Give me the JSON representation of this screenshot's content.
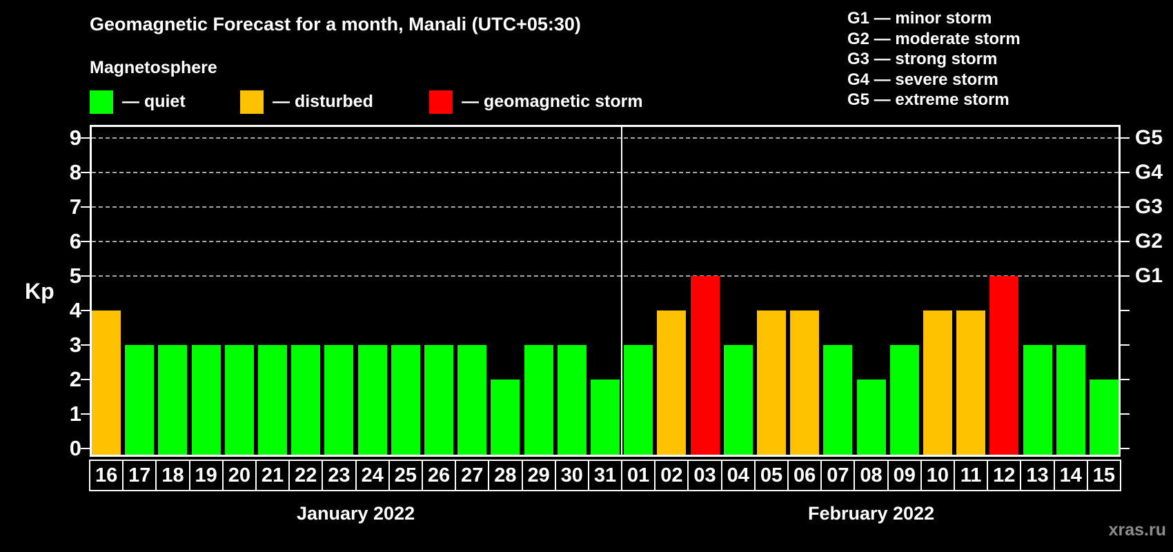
{
  "title": "Geomagnetic Forecast for a month, Manali (UTC+05:30)",
  "subtitle": "Magnetosphere",
  "watermark": "xras.ru",
  "legend": {
    "items": [
      {
        "id": "quiet",
        "label": "— quiet",
        "color": "#00ff00"
      },
      {
        "id": "disturbed",
        "label": "— disturbed",
        "color": "#ffc200"
      },
      {
        "id": "storm",
        "label": "— geomagnetic storm",
        "color": "#ff0000"
      }
    ]
  },
  "storm_scale_legend": [
    "G1 — minor storm",
    "G2 — moderate storm",
    "G3 — strong storm",
    "G4 — severe storm",
    "G5 — extreme storm"
  ],
  "chart_data": {
    "type": "bar",
    "title": "Geomagnetic Forecast for a month, Manali (UTC+05:30)",
    "xlabel": "",
    "ylabel": "Kp",
    "ylim": [
      0,
      9
    ],
    "yticks": [
      0,
      1,
      2,
      3,
      4,
      5,
      6,
      7,
      8,
      9
    ],
    "grid_levels": [
      5,
      6,
      7,
      8,
      9
    ],
    "grid": "dashed, only at storm levels G1-G5",
    "legend_position": "top",
    "right_axis": [
      {
        "kp": 5,
        "label": "G1"
      },
      {
        "kp": 6,
        "label": "G2"
      },
      {
        "kp": 7,
        "label": "G3"
      },
      {
        "kp": 8,
        "label": "G4"
      },
      {
        "kp": 9,
        "label": "G5"
      }
    ],
    "colors": {
      "quiet": "#00ff00",
      "disturbed": "#ffc200",
      "storm": "#ff0000"
    },
    "months": [
      {
        "label": "January 2022",
        "days": [
          {
            "day": "16",
            "kp": 4,
            "status": "disturbed"
          },
          {
            "day": "17",
            "kp": 3,
            "status": "quiet"
          },
          {
            "day": "18",
            "kp": 3,
            "status": "quiet"
          },
          {
            "day": "19",
            "kp": 3,
            "status": "quiet"
          },
          {
            "day": "20",
            "kp": 3,
            "status": "quiet"
          },
          {
            "day": "21",
            "kp": 3,
            "status": "quiet"
          },
          {
            "day": "22",
            "kp": 3,
            "status": "quiet"
          },
          {
            "day": "23",
            "kp": 3,
            "status": "quiet"
          },
          {
            "day": "24",
            "kp": 3,
            "status": "quiet"
          },
          {
            "day": "25",
            "kp": 3,
            "status": "quiet"
          },
          {
            "day": "26",
            "kp": 3,
            "status": "quiet"
          },
          {
            "day": "27",
            "kp": 3,
            "status": "quiet"
          },
          {
            "day": "28",
            "kp": 2,
            "status": "quiet"
          },
          {
            "day": "29",
            "kp": 3,
            "status": "quiet"
          },
          {
            "day": "30",
            "kp": 3,
            "status": "quiet"
          },
          {
            "day": "31",
            "kp": 2,
            "status": "quiet"
          }
        ]
      },
      {
        "label": "February 2022",
        "days": [
          {
            "day": "01",
            "kp": 3,
            "status": "quiet"
          },
          {
            "day": "02",
            "kp": 4,
            "status": "disturbed"
          },
          {
            "day": "03",
            "kp": 5,
            "status": "storm"
          },
          {
            "day": "04",
            "kp": 3,
            "status": "quiet"
          },
          {
            "day": "05",
            "kp": 4,
            "status": "disturbed"
          },
          {
            "day": "06",
            "kp": 4,
            "status": "disturbed"
          },
          {
            "day": "07",
            "kp": 3,
            "status": "quiet"
          },
          {
            "day": "08",
            "kp": 2,
            "status": "quiet"
          },
          {
            "day": "09",
            "kp": 3,
            "status": "quiet"
          },
          {
            "day": "10",
            "kp": 4,
            "status": "disturbed"
          },
          {
            "day": "11",
            "kp": 4,
            "status": "disturbed"
          },
          {
            "day": "12",
            "kp": 5,
            "status": "storm"
          },
          {
            "day": "13",
            "kp": 3,
            "status": "quiet"
          },
          {
            "day": "14",
            "kp": 3,
            "status": "quiet"
          },
          {
            "day": "15",
            "kp": 2,
            "status": "quiet"
          }
        ]
      }
    ]
  }
}
